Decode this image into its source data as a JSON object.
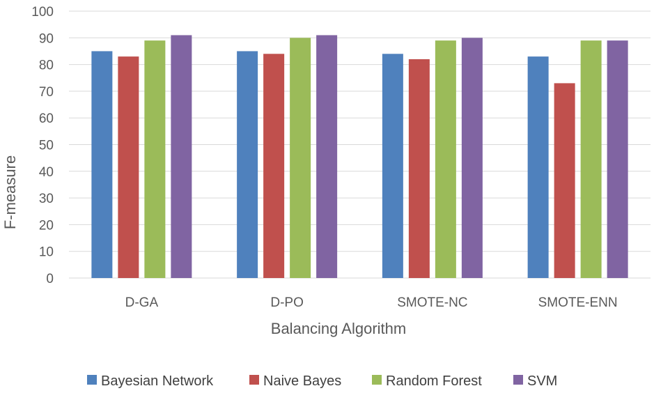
{
  "chart_data": {
    "type": "bar",
    "categories": [
      "D-GA",
      "D-PO",
      "SMOTE-NC",
      "SMOTE-ENN"
    ],
    "series": [
      {
        "name": "Bayesian Network",
        "color": "#4f81bd",
        "values": [
          85,
          85,
          84,
          83
        ]
      },
      {
        "name": "Naive Bayes",
        "color": "#c0504d",
        "values": [
          83,
          84,
          82,
          73
        ]
      },
      {
        "name": "Random Forest",
        "color": "#9bbb59",
        "values": [
          89,
          90,
          89,
          89
        ]
      },
      {
        "name": "SVM",
        "color": "#8064a2",
        "values": [
          91,
          91,
          90,
          89
        ]
      }
    ],
    "xlabel": "Balancing Algorithm",
    "ylabel": "F-measure",
    "ylim": [
      0,
      100
    ],
    "yticks": [
      0,
      10,
      20,
      30,
      40,
      50,
      60,
      70,
      80,
      90,
      100
    ],
    "grid": true,
    "legend_position": "bottom"
  }
}
